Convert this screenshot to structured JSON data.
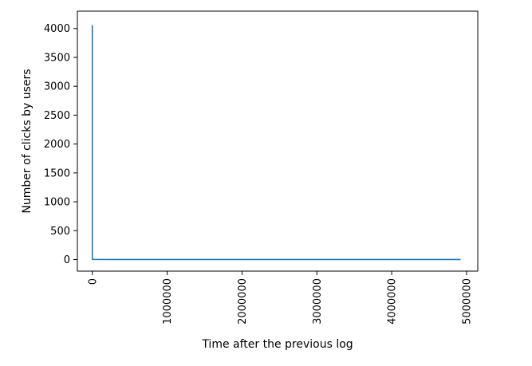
{
  "chart_data": {
    "type": "line",
    "title": "",
    "xlabel": "Time after the previous log",
    "ylabel": "Number of clicks by users",
    "xlim": [
      -200000,
      5150000
    ],
    "ylim": [
      -200,
      4300
    ],
    "xticks": [
      0,
      1000000,
      2000000,
      3000000,
      4000000,
      5000000
    ],
    "xtick_labels": [
      "0",
      "1000000",
      "2000000",
      "3000000",
      "4000000",
      "5000000"
    ],
    "yticks": [
      0,
      500,
      1000,
      1500,
      2000,
      2500,
      3000,
      3500,
      4000
    ],
    "ytick_labels": [
      "0",
      "500",
      "1000",
      "1500",
      "2000",
      "2500",
      "3000",
      "3500",
      "4000"
    ],
    "xtick_rotation": 90,
    "grid": false,
    "legend": "none",
    "series": [
      {
        "color": "#1f77b4",
        "x": [
          0,
          1,
          2,
          5,
          10,
          30,
          100,
          300,
          1000,
          10000,
          50000,
          100000,
          200000,
          300000,
          400000,
          500000,
          600000,
          1000000,
          2000000,
          3000000,
          4000000,
          4920000
        ],
        "y": [
          4060,
          1200,
          300,
          80,
          30,
          15,
          8,
          5,
          3,
          2,
          2,
          2,
          1,
          1,
          1,
          1,
          1,
          1,
          1,
          1,
          1,
          1
        ]
      }
    ]
  }
}
